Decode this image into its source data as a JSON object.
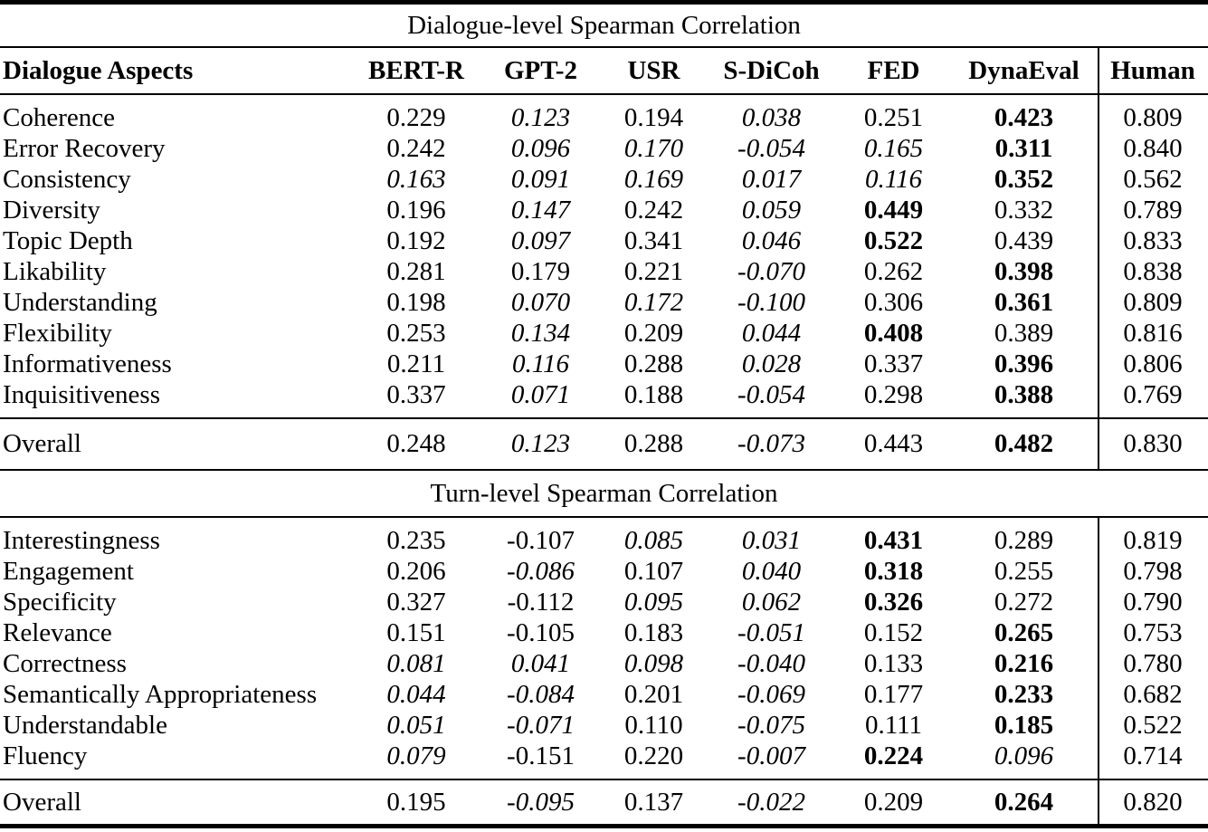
{
  "columns": [
    "Dialogue Aspects",
    "BERT-R",
    "GPT-2",
    "USR",
    "S-DiCoh",
    "FED",
    "DynaEval",
    "Human"
  ],
  "text_color": "#000000",
  "background_color": "#ffffff",
  "sections": [
    {
      "title": "Dialogue-level Spearman Correlation",
      "rows": [
        {
          "aspect": "Coherence",
          "values": [
            {
              "text": "0.229",
              "style": "normal"
            },
            {
              "text": "0.123",
              "style": "italic"
            },
            {
              "text": "0.194",
              "style": "normal"
            },
            {
              "text": "0.038",
              "style": "italic"
            },
            {
              "text": "0.251",
              "style": "normal"
            },
            {
              "text": "0.423",
              "style": "bold"
            },
            {
              "text": "0.809",
              "style": "normal"
            }
          ]
        },
        {
          "aspect": "Error Recovery",
          "values": [
            {
              "text": "0.242",
              "style": "normal"
            },
            {
              "text": "0.096",
              "style": "italic"
            },
            {
              "text": "0.170",
              "style": "italic"
            },
            {
              "text": "-0.054",
              "style": "italic"
            },
            {
              "text": "0.165",
              "style": "italic"
            },
            {
              "text": "0.311",
              "style": "bold"
            },
            {
              "text": "0.840",
              "style": "normal"
            }
          ]
        },
        {
          "aspect": "Consistency",
          "values": [
            {
              "text": "0.163",
              "style": "italic"
            },
            {
              "text": "0.091",
              "style": "italic"
            },
            {
              "text": "0.169",
              "style": "italic"
            },
            {
              "text": "0.017",
              "style": "italic"
            },
            {
              "text": "0.116",
              "style": "italic"
            },
            {
              "text": "0.352",
              "style": "bold"
            },
            {
              "text": "0.562",
              "style": "normal"
            }
          ]
        },
        {
          "aspect": "Diversity",
          "values": [
            {
              "text": "0.196",
              "style": "normal"
            },
            {
              "text": "0.147",
              "style": "italic"
            },
            {
              "text": "0.242",
              "style": "normal"
            },
            {
              "text": "0.059",
              "style": "italic"
            },
            {
              "text": "0.449",
              "style": "bold"
            },
            {
              "text": "0.332",
              "style": "normal"
            },
            {
              "text": "0.789",
              "style": "normal"
            }
          ]
        },
        {
          "aspect": "Topic Depth",
          "values": [
            {
              "text": "0.192",
              "style": "normal"
            },
            {
              "text": "0.097",
              "style": "italic"
            },
            {
              "text": "0.341",
              "style": "normal"
            },
            {
              "text": "0.046",
              "style": "italic"
            },
            {
              "text": "0.522",
              "style": "bold"
            },
            {
              "text": "0.439",
              "style": "normal"
            },
            {
              "text": "0.833",
              "style": "normal"
            }
          ]
        },
        {
          "aspect": "Likability",
          "values": [
            {
              "text": "0.281",
              "style": "normal"
            },
            {
              "text": "0.179",
              "style": "normal"
            },
            {
              "text": "0.221",
              "style": "normal"
            },
            {
              "text": "-0.070",
              "style": "italic"
            },
            {
              "text": "0.262",
              "style": "normal"
            },
            {
              "text": "0.398",
              "style": "bold"
            },
            {
              "text": "0.838",
              "style": "normal"
            }
          ]
        },
        {
          "aspect": "Understanding",
          "values": [
            {
              "text": "0.198",
              "style": "normal"
            },
            {
              "text": "0.070",
              "style": "italic"
            },
            {
              "text": "0.172",
              "style": "italic"
            },
            {
              "text": "-0.100",
              "style": "italic"
            },
            {
              "text": "0.306",
              "style": "normal"
            },
            {
              "text": "0.361",
              "style": "bold"
            },
            {
              "text": "0.809",
              "style": "normal"
            }
          ]
        },
        {
          "aspect": "Flexibility",
          "values": [
            {
              "text": "0.253",
              "style": "normal"
            },
            {
              "text": "0.134",
              "style": "italic"
            },
            {
              "text": "0.209",
              "style": "normal"
            },
            {
              "text": "0.044",
              "style": "italic"
            },
            {
              "text": "0.408",
              "style": "bold"
            },
            {
              "text": "0.389",
              "style": "normal"
            },
            {
              "text": "0.816",
              "style": "normal"
            }
          ]
        },
        {
          "aspect": "Informativeness",
          "values": [
            {
              "text": "0.211",
              "style": "normal"
            },
            {
              "text": "0.116",
              "style": "italic"
            },
            {
              "text": "0.288",
              "style": "normal"
            },
            {
              "text": "0.028",
              "style": "italic"
            },
            {
              "text": "0.337",
              "style": "normal"
            },
            {
              "text": "0.396",
              "style": "bold"
            },
            {
              "text": "0.806",
              "style": "normal"
            }
          ]
        },
        {
          "aspect": "Inquisitiveness",
          "values": [
            {
              "text": "0.337",
              "style": "normal"
            },
            {
              "text": "0.071",
              "style": "italic"
            },
            {
              "text": "0.188",
              "style": "normal"
            },
            {
              "text": "-0.054",
              "style": "italic"
            },
            {
              "text": "0.298",
              "style": "normal"
            },
            {
              "text": "0.388",
              "style": "bold"
            },
            {
              "text": "0.769",
              "style": "normal"
            }
          ]
        }
      ],
      "overall": {
        "aspect": "Overall",
        "values": [
          {
            "text": "0.248",
            "style": "normal"
          },
          {
            "text": "0.123",
            "style": "italic"
          },
          {
            "text": "0.288",
            "style": "normal"
          },
          {
            "text": "-0.073",
            "style": "italic"
          },
          {
            "text": "0.443",
            "style": "normal"
          },
          {
            "text": "0.482",
            "style": "bold"
          },
          {
            "text": "0.830",
            "style": "normal"
          }
        ]
      }
    },
    {
      "title": "Turn-level Spearman Correlation",
      "rows": [
        {
          "aspect": "Interestingness",
          "values": [
            {
              "text": "0.235",
              "style": "normal"
            },
            {
              "text": "-0.107",
              "style": "normal"
            },
            {
              "text": "0.085",
              "style": "italic"
            },
            {
              "text": "0.031",
              "style": "italic"
            },
            {
              "text": "0.431",
              "style": "bold"
            },
            {
              "text": "0.289",
              "style": "normal"
            },
            {
              "text": "0.819",
              "style": "normal"
            }
          ]
        },
        {
          "aspect": "Engagement",
          "values": [
            {
              "text": "0.206",
              "style": "normal"
            },
            {
              "text": "-0.086",
              "style": "italic"
            },
            {
              "text": "0.107",
              "style": "normal"
            },
            {
              "text": "0.040",
              "style": "italic"
            },
            {
              "text": "0.318",
              "style": "bold"
            },
            {
              "text": "0.255",
              "style": "normal"
            },
            {
              "text": "0.798",
              "style": "normal"
            }
          ]
        },
        {
          "aspect": "Specificity",
          "values": [
            {
              "text": "0.327",
              "style": "normal"
            },
            {
              "text": "-0.112",
              "style": "normal"
            },
            {
              "text": "0.095",
              "style": "italic"
            },
            {
              "text": "0.062",
              "style": "italic"
            },
            {
              "text": "0.326",
              "style": "bold"
            },
            {
              "text": "0.272",
              "style": "normal"
            },
            {
              "text": "0.790",
              "style": "normal"
            }
          ]
        },
        {
          "aspect": "Relevance",
          "values": [
            {
              "text": "0.151",
              "style": "normal"
            },
            {
              "text": "-0.105",
              "style": "normal"
            },
            {
              "text": "0.183",
              "style": "normal"
            },
            {
              "text": "-0.051",
              "style": "italic"
            },
            {
              "text": "0.152",
              "style": "normal"
            },
            {
              "text": "0.265",
              "style": "bold"
            },
            {
              "text": "0.753",
              "style": "normal"
            }
          ]
        },
        {
          "aspect": "Correctness",
          "values": [
            {
              "text": "0.081",
              "style": "italic"
            },
            {
              "text": "0.041",
              "style": "italic"
            },
            {
              "text": "0.098",
              "style": "italic"
            },
            {
              "text": "-0.040",
              "style": "italic"
            },
            {
              "text": "0.133",
              "style": "normal"
            },
            {
              "text": "0.216",
              "style": "bold"
            },
            {
              "text": "0.780",
              "style": "normal"
            }
          ]
        },
        {
          "aspect": "Semantically Appropriateness",
          "values": [
            {
              "text": "0.044",
              "style": "italic"
            },
            {
              "text": "-0.084",
              "style": "italic"
            },
            {
              "text": "0.201",
              "style": "normal"
            },
            {
              "text": "-0.069",
              "style": "italic"
            },
            {
              "text": "0.177",
              "style": "normal"
            },
            {
              "text": "0.233",
              "style": "bold"
            },
            {
              "text": "0.682",
              "style": "normal"
            }
          ]
        },
        {
          "aspect": "Understandable",
          "values": [
            {
              "text": "0.051",
              "style": "italic"
            },
            {
              "text": "-0.071",
              "style": "italic"
            },
            {
              "text": "0.110",
              "style": "normal"
            },
            {
              "text": "-0.075",
              "style": "italic"
            },
            {
              "text": "0.111",
              "style": "normal"
            },
            {
              "text": "0.185",
              "style": "bold"
            },
            {
              "text": "0.522",
              "style": "normal"
            }
          ]
        },
        {
          "aspect": "Fluency",
          "values": [
            {
              "text": "0.079",
              "style": "italic"
            },
            {
              "text": "-0.151",
              "style": "normal"
            },
            {
              "text": "0.220",
              "style": "normal"
            },
            {
              "text": "-0.007",
              "style": "italic"
            },
            {
              "text": "0.224",
              "style": "bold"
            },
            {
              "text": "0.096",
              "style": "italic"
            },
            {
              "text": "0.714",
              "style": "normal"
            }
          ]
        }
      ],
      "overall": {
        "aspect": "Overall",
        "values": [
          {
            "text": "0.195",
            "style": "normal"
          },
          {
            "text": "-0.095",
            "style": "italic"
          },
          {
            "text": "0.137",
            "style": "normal"
          },
          {
            "text": "-0.022",
            "style": "italic"
          },
          {
            "text": "0.209",
            "style": "normal"
          },
          {
            "text": "0.264",
            "style": "bold"
          },
          {
            "text": "0.820",
            "style": "normal"
          }
        ]
      }
    }
  ]
}
